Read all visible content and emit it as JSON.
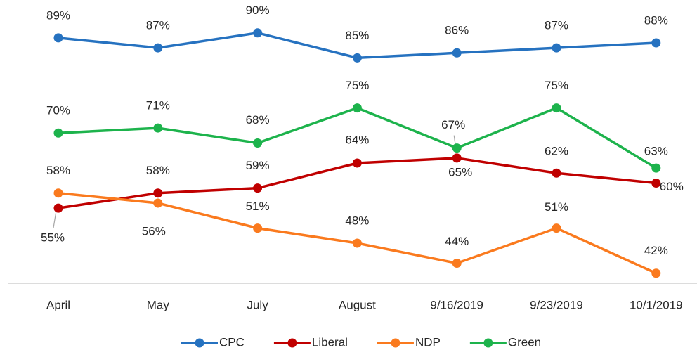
{
  "chart_data": {
    "type": "line",
    "categories": [
      "April",
      "May",
      "July",
      "August",
      "9/16/2019",
      "9/23/2019",
      "10/1/2019"
    ],
    "series": [
      {
        "name": "CPC",
        "color": "#2672c0",
        "values": [
          89,
          87,
          90,
          85,
          86,
          87,
          88
        ],
        "value_labels": [
          "89%",
          "87%",
          "90%",
          "85%",
          "86%",
          "87%",
          "88%"
        ]
      },
      {
        "name": "Liberal",
        "color": "#c00000",
        "values": [
          55,
          58,
          59,
          64,
          65,
          62,
          60
        ],
        "value_labels": [
          "55%",
          "58%",
          "59%",
          "64%",
          "65%",
          "62%",
          "60%"
        ]
      },
      {
        "name": "NDP",
        "color": "#fa7a1e",
        "values": [
          58,
          56,
          51,
          48,
          44,
          51,
          42
        ],
        "value_labels": [
          "58%",
          "56%",
          "51%",
          "48%",
          "44%",
          "51%",
          "42%"
        ]
      },
      {
        "name": "Green",
        "color": "#1db34c",
        "values": [
          70,
          71,
          68,
          75,
          67,
          75,
          63
        ],
        "value_labels": [
          "70%",
          "71%",
          "68%",
          "75%",
          "67%",
          "75%",
          "63%"
        ]
      }
    ],
    "ylim": [
      40,
      96
    ],
    "legend": "bottom"
  }
}
